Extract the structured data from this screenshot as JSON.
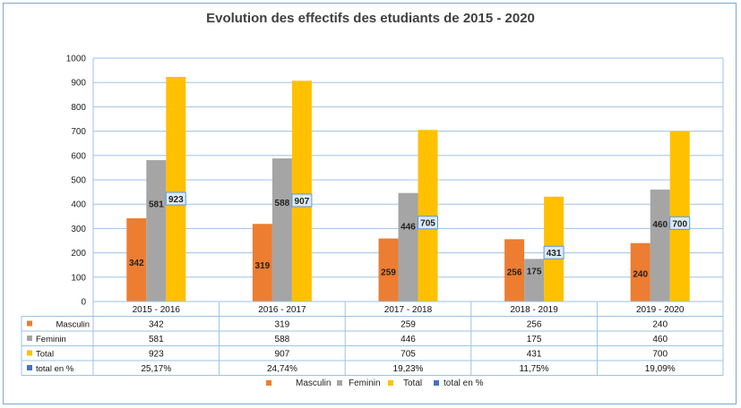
{
  "chart_data": {
    "type": "bar",
    "title": "Evolution des effectifs des etudiants de 2015 - 2020",
    "categories": [
      "2015 - 2016",
      "2016 - 2017",
      "2017 - 2018",
      "2018 - 2019",
      "2019 - 2020"
    ],
    "ylim": [
      0,
      1000
    ],
    "yticks": [
      0,
      100,
      200,
      300,
      400,
      500,
      600,
      700,
      800,
      900,
      1000
    ],
    "grid": true,
    "legend_position": "bottom",
    "series": [
      {
        "name": "Masculin",
        "values": [
          342,
          319,
          259,
          256,
          240
        ],
        "color": "#ed7d31",
        "plotted": true,
        "table_labels": [
          "342",
          "319",
          "259",
          "256",
          "240"
        ]
      },
      {
        "name": "Feminin",
        "values": [
          581,
          588,
          446,
          175,
          460
        ],
        "color": "#a5a5a5",
        "plotted": true,
        "table_labels": [
          "581",
          "588",
          "446",
          "175",
          "460"
        ]
      },
      {
        "name": "Total",
        "values": [
          923,
          907,
          705,
          431,
          700
        ],
        "color": "#ffc000",
        "plotted": true,
        "table_labels": [
          "923",
          "907",
          "705",
          "431",
          "700"
        ]
      },
      {
        "name": "total  en %",
        "values": [
          25.17,
          24.74,
          19.23,
          11.75,
          19.09
        ],
        "color": "#4472c4",
        "plotted": false,
        "table_labels": [
          "25,17%",
          "24,74%",
          "19,23%",
          "11,75%",
          "19,09%"
        ]
      }
    ],
    "legend_labels": [
      "Masculin",
      "Feminin",
      "Total",
      "total  en %"
    ]
  }
}
